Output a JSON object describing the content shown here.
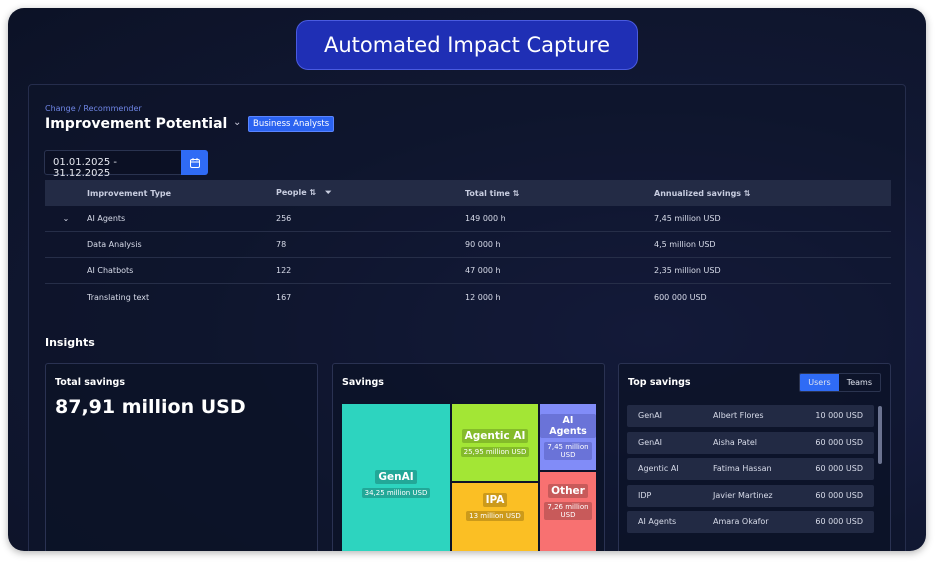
{
  "header": {
    "title": "Automated Impact Capture"
  },
  "page": {
    "breadcrumb": "Change / Recommender",
    "title": "Improvement Potential",
    "filter_badge": "Business Analysts",
    "date_range": "01.01.2025 - 31.12.2025"
  },
  "table": {
    "columns": [
      "Improvement Type",
      "People",
      "Total time",
      "Annualized savings"
    ],
    "rows": [
      {
        "type": "AI Agents",
        "people": "256",
        "time": "149 000 h",
        "savings": "7,45 million USD",
        "expanded": true
      },
      {
        "type": "Data Analysis",
        "people": "78",
        "time": "90 000 h",
        "savings": "4,5 million USD"
      },
      {
        "type": "AI Chatbots",
        "people": "122",
        "time": "47 000 h",
        "savings": "2,35 million USD"
      },
      {
        "type": "Translating text",
        "people": "167",
        "time": "12 000 h",
        "savings": "600 000 USD"
      }
    ]
  },
  "insights": {
    "title": "Insights",
    "total": {
      "title": "Total savings",
      "value": "87,91 million USD"
    },
    "savings": {
      "title": "Savings",
      "tiles": [
        {
          "label": "GenAI",
          "value": "34,25 million USD",
          "color": "#2dd4bf"
        },
        {
          "label": "Agentic AI",
          "value": "25,95 million USD",
          "color": "#a3e635"
        },
        {
          "label": "IPA",
          "value": "13 million USD",
          "color": "#fbbf24"
        },
        {
          "label": "AI Agents",
          "value": "7,45 million USD",
          "color": "#818cf8"
        },
        {
          "label": "Other",
          "value": "7,26 million USD",
          "color": "#f87171"
        }
      ]
    },
    "top": {
      "title": "Top savings",
      "tabs": [
        "Users",
        "Teams"
      ],
      "active_tab": "Users",
      "rows": [
        {
          "type": "GenAI",
          "name": "Albert Flores",
          "amount": "10 000 USD"
        },
        {
          "type": "GenAI",
          "name": "Aisha Patel",
          "amount": "60 000 USD"
        },
        {
          "type": "Agentic AI",
          "name": "Fatima Hassan",
          "amount": "60 000 USD"
        },
        {
          "type": "IDP",
          "name": "Javier Martinez",
          "amount": "60 000 USD"
        },
        {
          "type": "AI Agents",
          "name": "Amara Okafor",
          "amount": "60 000 USD"
        }
      ]
    }
  }
}
